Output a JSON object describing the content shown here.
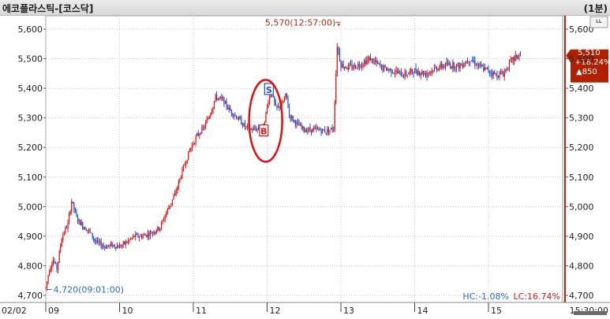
{
  "window": {
    "title": "에코플라스틱-[코스닥]",
    "period": "(1분)"
  },
  "colors": {
    "up": "#d81818",
    "down": "#1c4fd1",
    "max_label": "#b03010",
    "min_label": "#2a6cc8",
    "price_box": "#b02000",
    "marker_circle": "#e01010"
  },
  "chart_data": {
    "type": "candlestick",
    "ylim": [
      4700,
      5650
    ],
    "y_ticks": [
      4700,
      4800,
      4900,
      5000,
      5100,
      5200,
      5300,
      5400,
      5500,
      5600
    ],
    "y_tick_labels": [
      "4,700",
      "4,800",
      "4,900",
      "5,000",
      "5,100",
      "5,200",
      "5,300",
      "5,400",
      "5,500",
      "5,600"
    ],
    "x_ticks": [
      9,
      10,
      11,
      12,
      13,
      14,
      15
    ],
    "x_tick_labels": [
      "09",
      "10",
      "11",
      "12",
      "13",
      "14",
      "15"
    ],
    "x_range": [
      9,
      15.5
    ],
    "date_label": "02/02",
    "time_label": "15:30:00",
    "max_label": "5,570(12:57:00)",
    "max_value": 5570,
    "max_time": 12.95,
    "min_label": "4,720(09:01:00)",
    "min_value": 4720,
    "min_time": 9.017,
    "current_price": {
      "value": 5510,
      "label": "5,510",
      "change_pct": "+18.24%",
      "change": "▲850"
    },
    "hc_label": "HC:-1.08%",
    "lc_label": "LC:16.74%",
    "extra_icon_label": "ᄔ",
    "markers": [
      {
        "type": "sell",
        "label": "S",
        "time": 12.02,
        "price": 5395
      },
      {
        "type": "buy",
        "label": "B",
        "time": 11.95,
        "price": 5255
      }
    ],
    "price_path": [
      [
        9.0,
        4725
      ],
      [
        9.05,
        4790
      ],
      [
        9.1,
        4820
      ],
      [
        9.15,
        4790
      ],
      [
        9.22,
        4900
      ],
      [
        9.3,
        4940
      ],
      [
        9.35,
        5020
      ],
      [
        9.42,
        4960
      ],
      [
        9.5,
        4935
      ],
      [
        9.58,
        4920
      ],
      [
        9.68,
        4880
      ],
      [
        9.8,
        4865
      ],
      [
        9.9,
        4870
      ],
      [
        10.0,
        4865
      ],
      [
        10.1,
        4880
      ],
      [
        10.2,
        4900
      ],
      [
        10.3,
        4900
      ],
      [
        10.42,
        4910
      ],
      [
        10.55,
        4930
      ],
      [
        10.65,
        4990
      ],
      [
        10.75,
        5040
      ],
      [
        10.85,
        5120
      ],
      [
        10.95,
        5190
      ],
      [
        11.05,
        5240
      ],
      [
        11.15,
        5270
      ],
      [
        11.25,
        5330
      ],
      [
        11.3,
        5370
      ],
      [
        11.4,
        5360
      ],
      [
        11.48,
        5330
      ],
      [
        11.6,
        5300
      ],
      [
        11.7,
        5270
      ],
      [
        11.78,
        5260
      ],
      [
        11.88,
        5265
      ],
      [
        11.95,
        5270
      ],
      [
        12.02,
        5365
      ],
      [
        12.06,
        5385
      ],
      [
        12.12,
        5330
      ],
      [
        12.2,
        5345
      ],
      [
        12.26,
        5380
      ],
      [
        12.3,
        5310
      ],
      [
        12.4,
        5280
      ],
      [
        12.5,
        5260
      ],
      [
        12.6,
        5260
      ],
      [
        12.7,
        5260
      ],
      [
        12.8,
        5255
      ],
      [
        12.9,
        5265
      ],
      [
        12.95,
        5545
      ],
      [
        13.0,
        5480
      ],
      [
        13.1,
        5470
      ],
      [
        13.2,
        5475
      ],
      [
        13.32,
        5490
      ],
      [
        13.4,
        5500
      ],
      [
        13.55,
        5470
      ],
      [
        13.7,
        5460
      ],
      [
        13.85,
        5445
      ],
      [
        14.0,
        5460
      ],
      [
        14.15,
        5450
      ],
      [
        14.3,
        5470
      ],
      [
        14.45,
        5480
      ],
      [
        14.6,
        5475
      ],
      [
        14.75,
        5500
      ],
      [
        14.9,
        5470
      ],
      [
        15.0,
        5460
      ],
      [
        15.1,
        5445
      ],
      [
        15.2,
        5450
      ],
      [
        15.3,
        5490
      ],
      [
        15.4,
        5510
      ],
      [
        15.45,
        5510
      ]
    ]
  }
}
